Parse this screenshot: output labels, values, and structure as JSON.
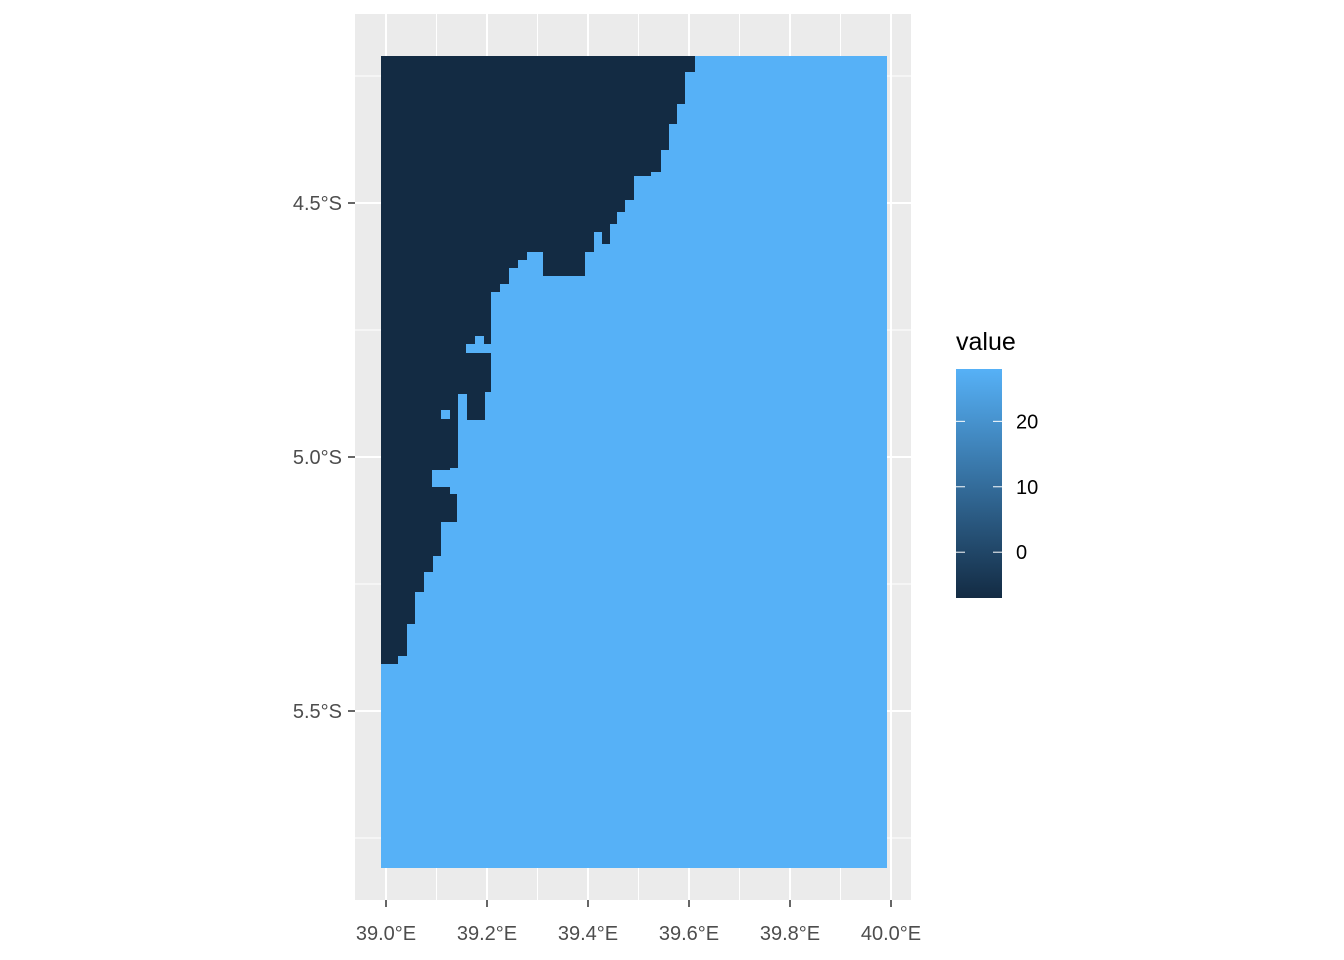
{
  "chart_data": {
    "type": "heatmap",
    "title": "",
    "xlabel": "",
    "ylabel": "",
    "x_axis": {
      "ticks": [
        "39.0°E",
        "39.2°E",
        "39.4°E",
        "39.6°E",
        "39.8°E",
        "40.0°E"
      ],
      "tick_values": [
        39.0,
        39.2,
        39.4,
        39.6,
        39.8,
        40.0
      ]
    },
    "y_axis": {
      "ticks": [
        "4.5°S",
        "5.0°S",
        "5.5°S"
      ],
      "tick_values": [
        -4.5,
        -5.0,
        -5.5
      ]
    },
    "extent": {
      "lon": [
        38.99,
        40.0
      ],
      "lat": [
        -5.81,
        -4.21
      ]
    },
    "grid": true,
    "legend": {
      "title": "value",
      "position": "right",
      "ticks": [
        "20",
        "10",
        "0"
      ],
      "tick_values": [
        20,
        10,
        0
      ],
      "range": [
        -7,
        28
      ]
    },
    "colors": {
      "land_value": "#132B43",
      "sea_value": "#56B1F7",
      "panel": "#EBEBEB",
      "grid": "#FFFFFF"
    },
    "values": {
      "land": -7,
      "sea_approx": 27
    },
    "coast_boundary": [
      [
        -4.21,
        39.61
      ],
      [
        -4.25,
        39.6
      ],
      [
        -4.32,
        39.59
      ],
      [
        -4.36,
        39.57
      ],
      [
        -4.4,
        39.56
      ],
      [
        -4.43,
        39.54
      ],
      [
        -4.47,
        39.52
      ],
      [
        -4.5,
        39.5
      ],
      [
        -4.53,
        39.47
      ],
      [
        -4.57,
        39.45
      ],
      [
        -4.6,
        39.4
      ],
      [
        -4.62,
        39.31
      ],
      [
        -4.64,
        39.27
      ],
      [
        -4.67,
        39.23
      ],
      [
        -4.75,
        39.2
      ],
      [
        -4.8,
        39.2
      ],
      [
        -4.85,
        39.17
      ],
      [
        -4.9,
        39.17
      ],
      [
        -4.95,
        39.15
      ],
      [
        -5.0,
        39.15
      ],
      [
        -5.05,
        39.14
      ],
      [
        -5.1,
        39.14
      ],
      [
        -5.15,
        39.11
      ],
      [
        -5.2,
        39.1
      ],
      [
        -5.25,
        39.08
      ],
      [
        -5.3,
        39.06
      ],
      [
        -5.35,
        39.04
      ],
      [
        -5.41,
        38.99
      ]
    ]
  }
}
